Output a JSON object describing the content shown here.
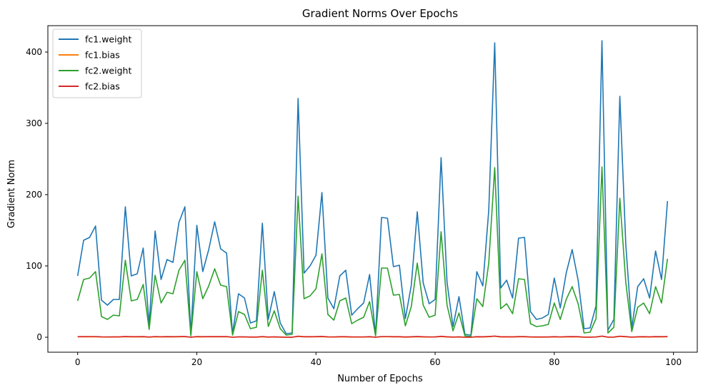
{
  "chart_data": {
    "type": "line",
    "title": "Gradient Norms Over Epochs",
    "xlabel": "Number of Epochs",
    "ylabel": "Gradient Norm",
    "xlim": [
      -5,
      104
    ],
    "ylim": [
      -21,
      437
    ],
    "xticks": [
      0,
      20,
      40,
      60,
      80,
      100
    ],
    "yticks": [
      0,
      100,
      200,
      300,
      400
    ],
    "grid": false,
    "legend_position": "top-left",
    "x": [
      0,
      1,
      2,
      3,
      4,
      5,
      6,
      7,
      8,
      9,
      10,
      11,
      12,
      13,
      14,
      15,
      16,
      17,
      18,
      19,
      20,
      21,
      22,
      23,
      24,
      25,
      26,
      27,
      28,
      29,
      30,
      31,
      32,
      33,
      34,
      35,
      36,
      37,
      38,
      39,
      40,
      41,
      42,
      43,
      44,
      45,
      46,
      47,
      48,
      49,
      50,
      51,
      52,
      53,
      54,
      55,
      56,
      57,
      58,
      59,
      60,
      61,
      62,
      63,
      64,
      65,
      66,
      67,
      68,
      69,
      70,
      71,
      72,
      73,
      74,
      75,
      76,
      77,
      78,
      79,
      80,
      81,
      82,
      83,
      84,
      85,
      86,
      87,
      88,
      89,
      90,
      91,
      92,
      93,
      94,
      95,
      96,
      97,
      98,
      99
    ],
    "series": [
      {
        "name": "fc1.weight",
        "color": "#1f77b4",
        "values": [
          86,
          136,
          140,
          156,
          52,
          45,
          53,
          53,
          183,
          86,
          89,
          125,
          18,
          149,
          81,
          109,
          105,
          161,
          183,
          4,
          157,
          92,
          123,
          162,
          124,
          118,
          5,
          61,
          55,
          20,
          23,
          160,
          25,
          64,
          20,
          5,
          6,
          335,
          90,
          100,
          115,
          203,
          55,
          40,
          86,
          94,
          31,
          40,
          48,
          88,
          3,
          168,
          167,
          99,
          101,
          26,
          73,
          176,
          76,
          47,
          53,
          252,
          77,
          15,
          57,
          4,
          3,
          92,
          72,
          178,
          413,
          69,
          80,
          55,
          139,
          140,
          36,
          25,
          27,
          32,
          83,
          41,
          90,
          123,
          80,
          12,
          13,
          44,
          416,
          10,
          25,
          338,
          130,
          13,
          71,
          82,
          55,
          121,
          81,
          191
        ]
      },
      {
        "name": "fc1.bias",
        "color": "#ff7f0e",
        "values": [
          0.5,
          0.6,
          0.6,
          0.6,
          0.3,
          0.2,
          0.3,
          0.3,
          0.7,
          0.4,
          0.4,
          0.5,
          0.1,
          0.6,
          0.4,
          0.5,
          0.4,
          0.6,
          0.7,
          0.0,
          0.6,
          0.4,
          0.5,
          0.6,
          0.5,
          0.5,
          0.0,
          0.3,
          0.3,
          0.1,
          0.1,
          0.6,
          0.1,
          0.3,
          0.1,
          0.0,
          0.0,
          1.2,
          0.4,
          0.4,
          0.5,
          0.8,
          0.3,
          0.2,
          0.4,
          0.4,
          0.2,
          0.2,
          0.2,
          0.4,
          0.0,
          0.7,
          0.7,
          0.4,
          0.4,
          0.1,
          0.3,
          0.7,
          0.3,
          0.2,
          0.3,
          0.9,
          0.3,
          0.1,
          0.3,
          0.0,
          0.0,
          0.4,
          0.3,
          0.7,
          1.4,
          0.3,
          0.4,
          0.3,
          0.6,
          0.6,
          0.2,
          0.1,
          0.1,
          0.2,
          0.4,
          0.2,
          0.4,
          0.5,
          0.4,
          0.1,
          0.1,
          0.2,
          1.4,
          0.1,
          0.1,
          1.2,
          0.5,
          0.1,
          0.3,
          0.4,
          0.3,
          0.5,
          0.4,
          0.7
        ]
      },
      {
        "name": "fc2.weight",
        "color": "#2ca02c",
        "values": [
          51,
          81,
          83,
          92,
          29,
          25,
          31,
          30,
          108,
          51,
          53,
          74,
          11,
          87,
          48,
          63,
          61,
          94,
          108,
          2,
          92,
          54,
          72,
          96,
          73,
          71,
          3,
          36,
          32,
          12,
          14,
          94,
          15,
          37,
          12,
          3,
          4,
          198,
          54,
          58,
          68,
          117,
          32,
          24,
          51,
          55,
          19,
          24,
          28,
          50,
          2,
          97,
          97,
          59,
          60,
          16,
          43,
          104,
          45,
          28,
          31,
          148,
          45,
          9,
          34,
          2,
          1,
          54,
          43,
          104,
          238,
          40,
          47,
          33,
          82,
          81,
          19,
          15,
          16,
          18,
          48,
          25,
          53,
          71,
          47,
          6,
          7,
          26,
          239,
          6,
          14,
          195,
          77,
          8,
          42,
          48,
          33,
          71,
          48,
          110
        ]
      },
      {
        "name": "fc2.bias",
        "color": "#d62728",
        "values": [
          0.8,
          0.9,
          1.0,
          1.0,
          0.6,
          0.5,
          0.6,
          0.6,
          1.1,
          0.8,
          0.8,
          0.9,
          0.3,
          1.0,
          0.7,
          0.9,
          0.8,
          1.0,
          1.1,
          0.1,
          1.0,
          0.8,
          0.9,
          1.0,
          0.9,
          0.9,
          0.1,
          0.6,
          0.6,
          0.3,
          0.3,
          1.0,
          0.3,
          0.6,
          0.3,
          0.1,
          0.1,
          1.4,
          0.8,
          0.8,
          0.9,
          1.2,
          0.6,
          0.5,
          0.8,
          0.8,
          0.4,
          0.5,
          0.5,
          0.8,
          0.1,
          1.0,
          1.0,
          0.8,
          0.8,
          0.4,
          0.7,
          1.1,
          0.7,
          0.5,
          0.6,
          1.3,
          0.7,
          0.3,
          0.6,
          0.1,
          0.1,
          0.8,
          0.7,
          1.1,
          1.6,
          0.7,
          0.7,
          0.6,
          0.9,
          0.9,
          0.5,
          0.4,
          0.4,
          0.4,
          0.8,
          0.5,
          0.8,
          0.9,
          0.8,
          0.2,
          0.2,
          0.5,
          1.6,
          0.2,
          0.3,
          1.4,
          0.9,
          0.2,
          0.7,
          0.8,
          0.6,
          0.9,
          0.8,
          1.1
        ]
      }
    ]
  }
}
